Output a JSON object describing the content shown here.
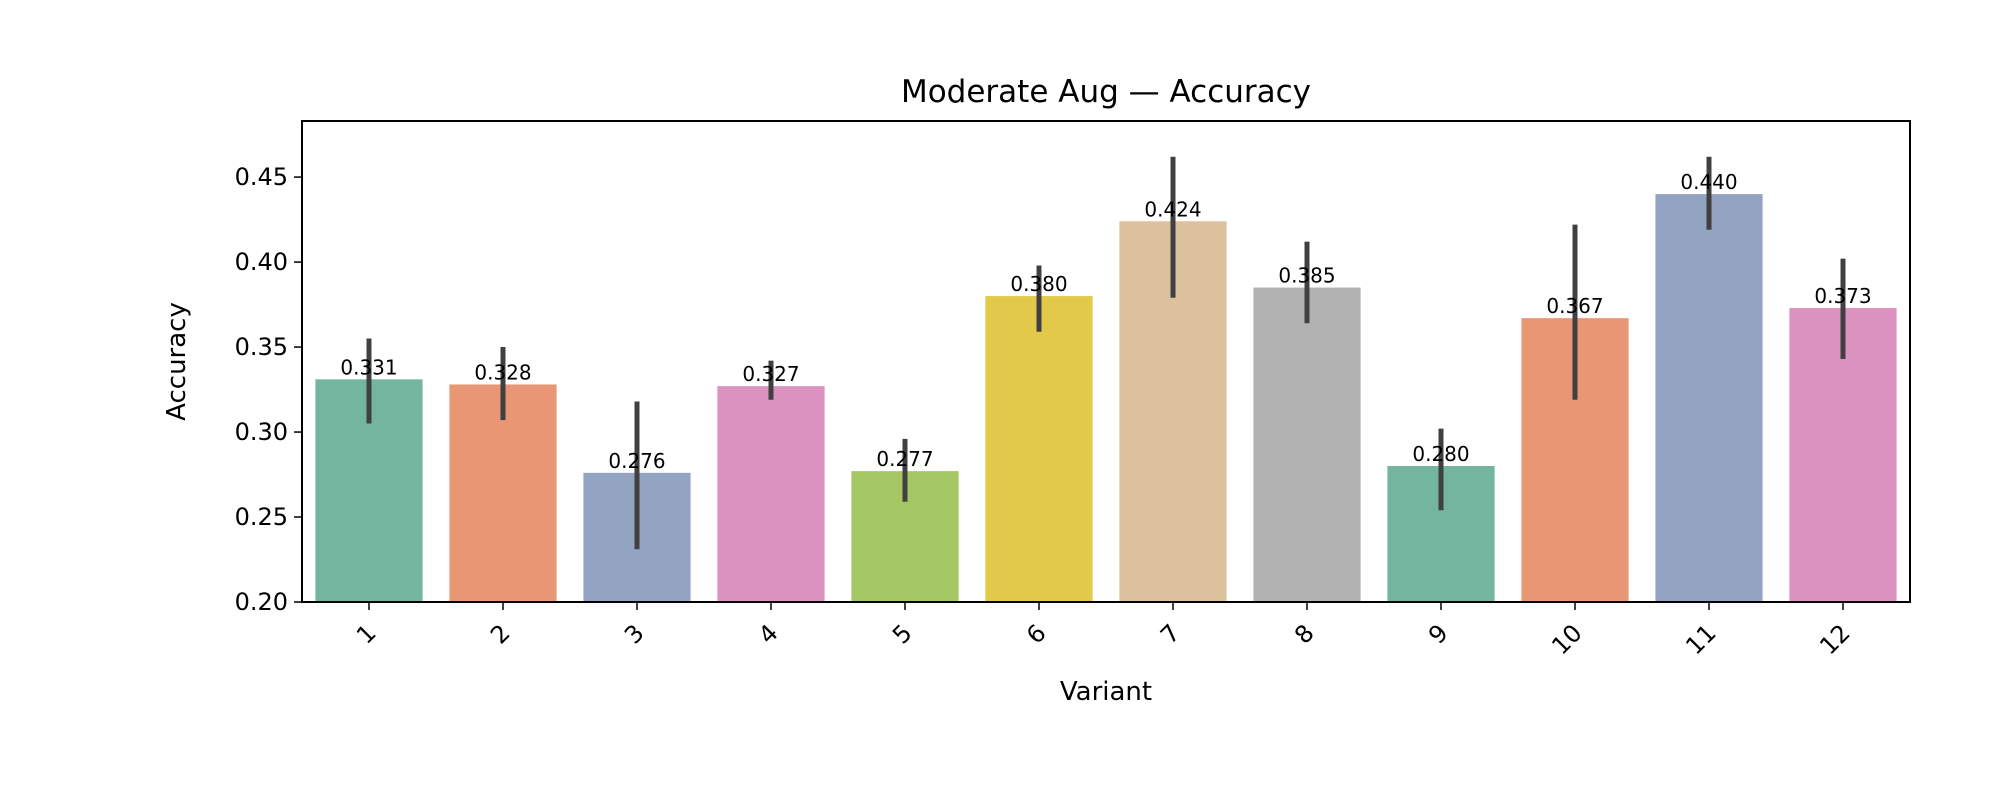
{
  "chart_data": {
    "type": "bar",
    "title": "Moderate Aug — Accuracy",
    "xlabel": "Variant",
    "ylabel": "Accuracy",
    "ylim": [
      0.2,
      0.483
    ],
    "yticks": [
      "0.20",
      "0.25",
      "0.30",
      "0.35",
      "0.40",
      "0.45"
    ],
    "grid": false,
    "categories": [
      "1",
      "2",
      "3",
      "4",
      "5",
      "6",
      "7",
      "8",
      "9",
      "10",
      "11",
      "12"
    ],
    "values": [
      0.331,
      0.328,
      0.276,
      0.327,
      0.277,
      0.38,
      0.424,
      0.385,
      0.28,
      0.367,
      0.44,
      0.373
    ],
    "value_labels": [
      "0.331",
      "0.328",
      "0.276",
      "0.327",
      "0.277",
      "0.380",
      "0.424",
      "0.385",
      "0.280",
      "0.367",
      "0.440",
      "0.373"
    ],
    "error_low": [
      0.305,
      0.307,
      0.231,
      0.319,
      0.259,
      0.359,
      0.379,
      0.364,
      0.254,
      0.319,
      0.419,
      0.343
    ],
    "error_high": [
      0.355,
      0.35,
      0.318,
      0.342,
      0.296,
      0.398,
      0.462,
      0.412,
      0.302,
      0.422,
      0.462,
      0.402
    ],
    "colors": [
      "#73b59f",
      "#e99675",
      "#93a4c3",
      "#dc93c0",
      "#a4c764",
      "#e3c94a",
      "#dbc19c",
      "#b2b2b2",
      "#73b59f",
      "#e99675",
      "#93a4c3",
      "#dc93c0"
    ],
    "error_color": "#404040"
  }
}
